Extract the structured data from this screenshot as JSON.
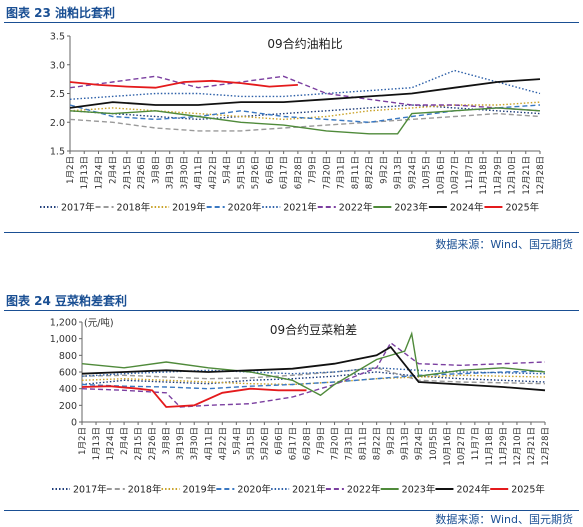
{
  "figures": [
    {
      "title": "图表 23 油粕比套利",
      "source": "数据来源：Wind、国元期货"
    },
    {
      "title": "图表 24 豆菜粕差套利",
      "source": "数据来源：Wind、国元期货"
    }
  ],
  "chart_data": [
    {
      "type": "line",
      "title": "09合约油粕比",
      "ylabel": "",
      "ylim": [
        1.5,
        3.5
      ],
      "yticks": [
        "3.5",
        "3.0",
        "2.5",
        "2.0",
        "1.5"
      ],
      "x_labels": [
        "1月2日",
        "1月13日",
        "1月24日",
        "2月4日",
        "2月15日",
        "2月26日",
        "3月8日",
        "3月19日",
        "3月30日",
        "4月11日",
        "4月22日",
        "5月4日",
        "5月15日",
        "5月26日",
        "6月6日",
        "6月17日",
        "6月28日",
        "7月9日",
        "7月20日",
        "7月31日",
        "8月11日",
        "8月22日",
        "9月2日",
        "9月13日",
        "9月24日",
        "10月5日",
        "10月16日",
        "10月27日",
        "11月7日",
        "11月18日",
        "11月29日",
        "12月10日",
        "12月21日",
        "12月28日"
      ],
      "legend_position": "bottom",
      "series": [
        {
          "name": "2017年",
          "color": "#1f3d7a",
          "style": "dot",
          "x": [
            0,
            3,
            6,
            9,
            12,
            15,
            18,
            21,
            24,
            27,
            30,
            33
          ],
          "y": [
            2.2,
            2.15,
            2.1,
            2.05,
            2.1,
            2.15,
            2.2,
            2.25,
            2.3,
            2.25,
            2.2,
            2.15
          ]
        },
        {
          "name": "2018年",
          "color": "#9a9a9a",
          "style": "dash",
          "x": [
            0,
            3,
            6,
            9,
            12,
            15,
            18,
            21,
            24,
            27,
            30,
            33
          ],
          "y": [
            2.05,
            2.0,
            1.9,
            1.85,
            1.85,
            1.9,
            1.95,
            2.0,
            2.05,
            2.1,
            2.15,
            2.1
          ]
        },
        {
          "name": "2019年",
          "color": "#c9a227",
          "style": "dot",
          "x": [
            0,
            3,
            6,
            9,
            12,
            15,
            18,
            21,
            24,
            27,
            30,
            33
          ],
          "y": [
            2.2,
            2.25,
            2.2,
            2.15,
            2.1,
            2.05,
            2.1,
            2.2,
            2.25,
            2.3,
            2.3,
            2.35
          ]
        },
        {
          "name": "2020年",
          "color": "#3a78c2",
          "style": "dash",
          "x": [
            0,
            3,
            6,
            9,
            12,
            15,
            18,
            21,
            24,
            27,
            30,
            33
          ],
          "y": [
            2.3,
            2.1,
            2.05,
            2.1,
            2.2,
            2.1,
            2.05,
            2.0,
            2.1,
            2.2,
            2.25,
            2.3
          ]
        },
        {
          "name": "2021年",
          "color": "#2c5fa8",
          "style": "dot",
          "x": [
            0,
            3,
            6,
            9,
            12,
            15,
            18,
            21,
            24,
            27,
            30,
            33
          ],
          "y": [
            2.4,
            2.45,
            2.5,
            2.5,
            2.45,
            2.45,
            2.5,
            2.55,
            2.6,
            2.9,
            2.7,
            2.5
          ]
        },
        {
          "name": "2022年",
          "color": "#7b3fa0",
          "style": "dash",
          "x": [
            0,
            3,
            6,
            9,
            12,
            15,
            18,
            21,
            24,
            27,
            30,
            33
          ],
          "y": [
            2.6,
            2.7,
            2.8,
            2.6,
            2.7,
            2.8,
            2.5,
            2.4,
            2.3,
            2.3,
            2.25,
            2.2
          ]
        },
        {
          "name": "2023年",
          "color": "#4f8a3a",
          "style": "solid",
          "x": [
            0,
            3,
            6,
            9,
            12,
            15,
            18,
            21,
            23,
            24,
            27,
            30,
            33
          ],
          "y": [
            2.2,
            2.15,
            2.2,
            2.1,
            2.0,
            1.95,
            1.85,
            1.8,
            1.8,
            2.15,
            2.2,
            2.25,
            2.2
          ]
        },
        {
          "name": "2024年",
          "color": "#111111",
          "style": "solid",
          "x": [
            0,
            3,
            6,
            9,
            12,
            15,
            18,
            21,
            24,
            27,
            30,
            33
          ],
          "y": [
            2.25,
            2.35,
            2.3,
            2.3,
            2.35,
            2.35,
            2.4,
            2.45,
            2.5,
            2.6,
            2.7,
            2.75
          ]
        },
        {
          "name": "2025年",
          "color": "#e41a1c",
          "style": "solid",
          "x": [
            0,
            2,
            4,
            6,
            8,
            10,
            12,
            14,
            16
          ],
          "y": [
            2.7,
            2.65,
            2.62,
            2.6,
            2.7,
            2.72,
            2.68,
            2.62,
            2.65
          ]
        }
      ]
    },
    {
      "type": "line",
      "title": "09合约豆菜粕差",
      "ylabel": "(元/吨)",
      "ylim": [
        0,
        1200
      ],
      "yticks": [
        "1,200",
        "1,000",
        "800",
        "600",
        "400",
        "200",
        "0"
      ],
      "x_labels": [
        "1月2日",
        "1月13日",
        "1月24日",
        "2月4日",
        "2月15日",
        "2月26日",
        "3月8日",
        "3月19日",
        "3月30日",
        "4月11日",
        "4月22日",
        "5月4日",
        "5月15日",
        "5月26日",
        "6月6日",
        "6月17日",
        "6月28日",
        "7月9日",
        "7月20日",
        "7月31日",
        "8月11日",
        "8月22日",
        "9月2日",
        "9月13日",
        "9月24日",
        "10月5日",
        "10月16日",
        "10月27日",
        "11月7日",
        "11月18日",
        "11月29日",
        "12月10日",
        "12月21日",
        "12月28日"
      ],
      "legend_position": "bottom",
      "series": [
        {
          "name": "2017年",
          "color": "#1f3d7a",
          "style": "dot",
          "x": [
            0,
            3,
            6,
            9,
            12,
            15,
            18,
            21,
            24,
            27,
            30,
            33
          ],
          "y": [
            450,
            500,
            480,
            460,
            500,
            520,
            550,
            600,
            550,
            520,
            500,
            480
          ]
        },
        {
          "name": "2018年",
          "color": "#9a9a9a",
          "style": "dash",
          "x": [
            0,
            3,
            6,
            9,
            12,
            15,
            18,
            21,
            24,
            27,
            30,
            33
          ],
          "y": [
            550,
            560,
            540,
            520,
            530,
            560,
            600,
            650,
            500,
            480,
            470,
            460
          ]
        },
        {
          "name": "2019年",
          "color": "#c9a227",
          "style": "dot",
          "x": [
            0,
            3,
            6,
            9,
            12,
            15,
            18,
            21,
            24,
            27,
            30,
            33
          ],
          "y": [
            500,
            520,
            500,
            480,
            460,
            450,
            480,
            520,
            540,
            560,
            550,
            540
          ]
        },
        {
          "name": "2020年",
          "color": "#3a78c2",
          "style": "dash",
          "x": [
            0,
            3,
            6,
            9,
            12,
            15,
            18,
            21,
            24,
            27,
            30,
            33
          ],
          "y": [
            450,
            430,
            420,
            400,
            430,
            450,
            480,
            520,
            560,
            580,
            600,
            610
          ]
        },
        {
          "name": "2021年",
          "color": "#2c5fa8",
          "style": "dot",
          "x": [
            0,
            3,
            6,
            9,
            12,
            15,
            18,
            21,
            24,
            27,
            30,
            33
          ],
          "y": [
            550,
            580,
            600,
            620,
            600,
            580,
            600,
            650,
            620,
            600,
            590,
            580
          ]
        },
        {
          "name": "2022年",
          "color": "#7b3fa0",
          "style": "dash",
          "x": [
            0,
            3,
            6,
            7,
            9,
            12,
            15,
            18,
            21,
            22,
            24,
            27,
            30,
            33
          ],
          "y": [
            400,
            380,
            350,
            180,
            200,
            220,
            300,
            450,
            650,
            950,
            700,
            680,
            700,
            720
          ]
        },
        {
          "name": "2023年",
          "color": "#4f8a3a",
          "style": "solid",
          "x": [
            0,
            3,
            6,
            9,
            12,
            15,
            17,
            18,
            21,
            23,
            23.5,
            24,
            27,
            30,
            33
          ],
          "y": [
            700,
            650,
            720,
            650,
            600,
            500,
            320,
            450,
            750,
            850,
            1060,
            550,
            620,
            650,
            600
          ]
        },
        {
          "name": "2024年",
          "color": "#111111",
          "style": "solid",
          "x": [
            0,
            3,
            6,
            9,
            12,
            15,
            18,
            21,
            22,
            24,
            27,
            30,
            33
          ],
          "y": [
            580,
            600,
            620,
            600,
            620,
            640,
            700,
            800,
            900,
            480,
            450,
            420,
            380
          ]
        },
        {
          "name": "2025年",
          "color": "#e41a1c",
          "style": "solid",
          "x": [
            0,
            2,
            4,
            5,
            6,
            8,
            10,
            12,
            14,
            16
          ],
          "y": [
            420,
            430,
            400,
            380,
            180,
            200,
            350,
            400,
            380,
            380
          ]
        }
      ]
    }
  ]
}
